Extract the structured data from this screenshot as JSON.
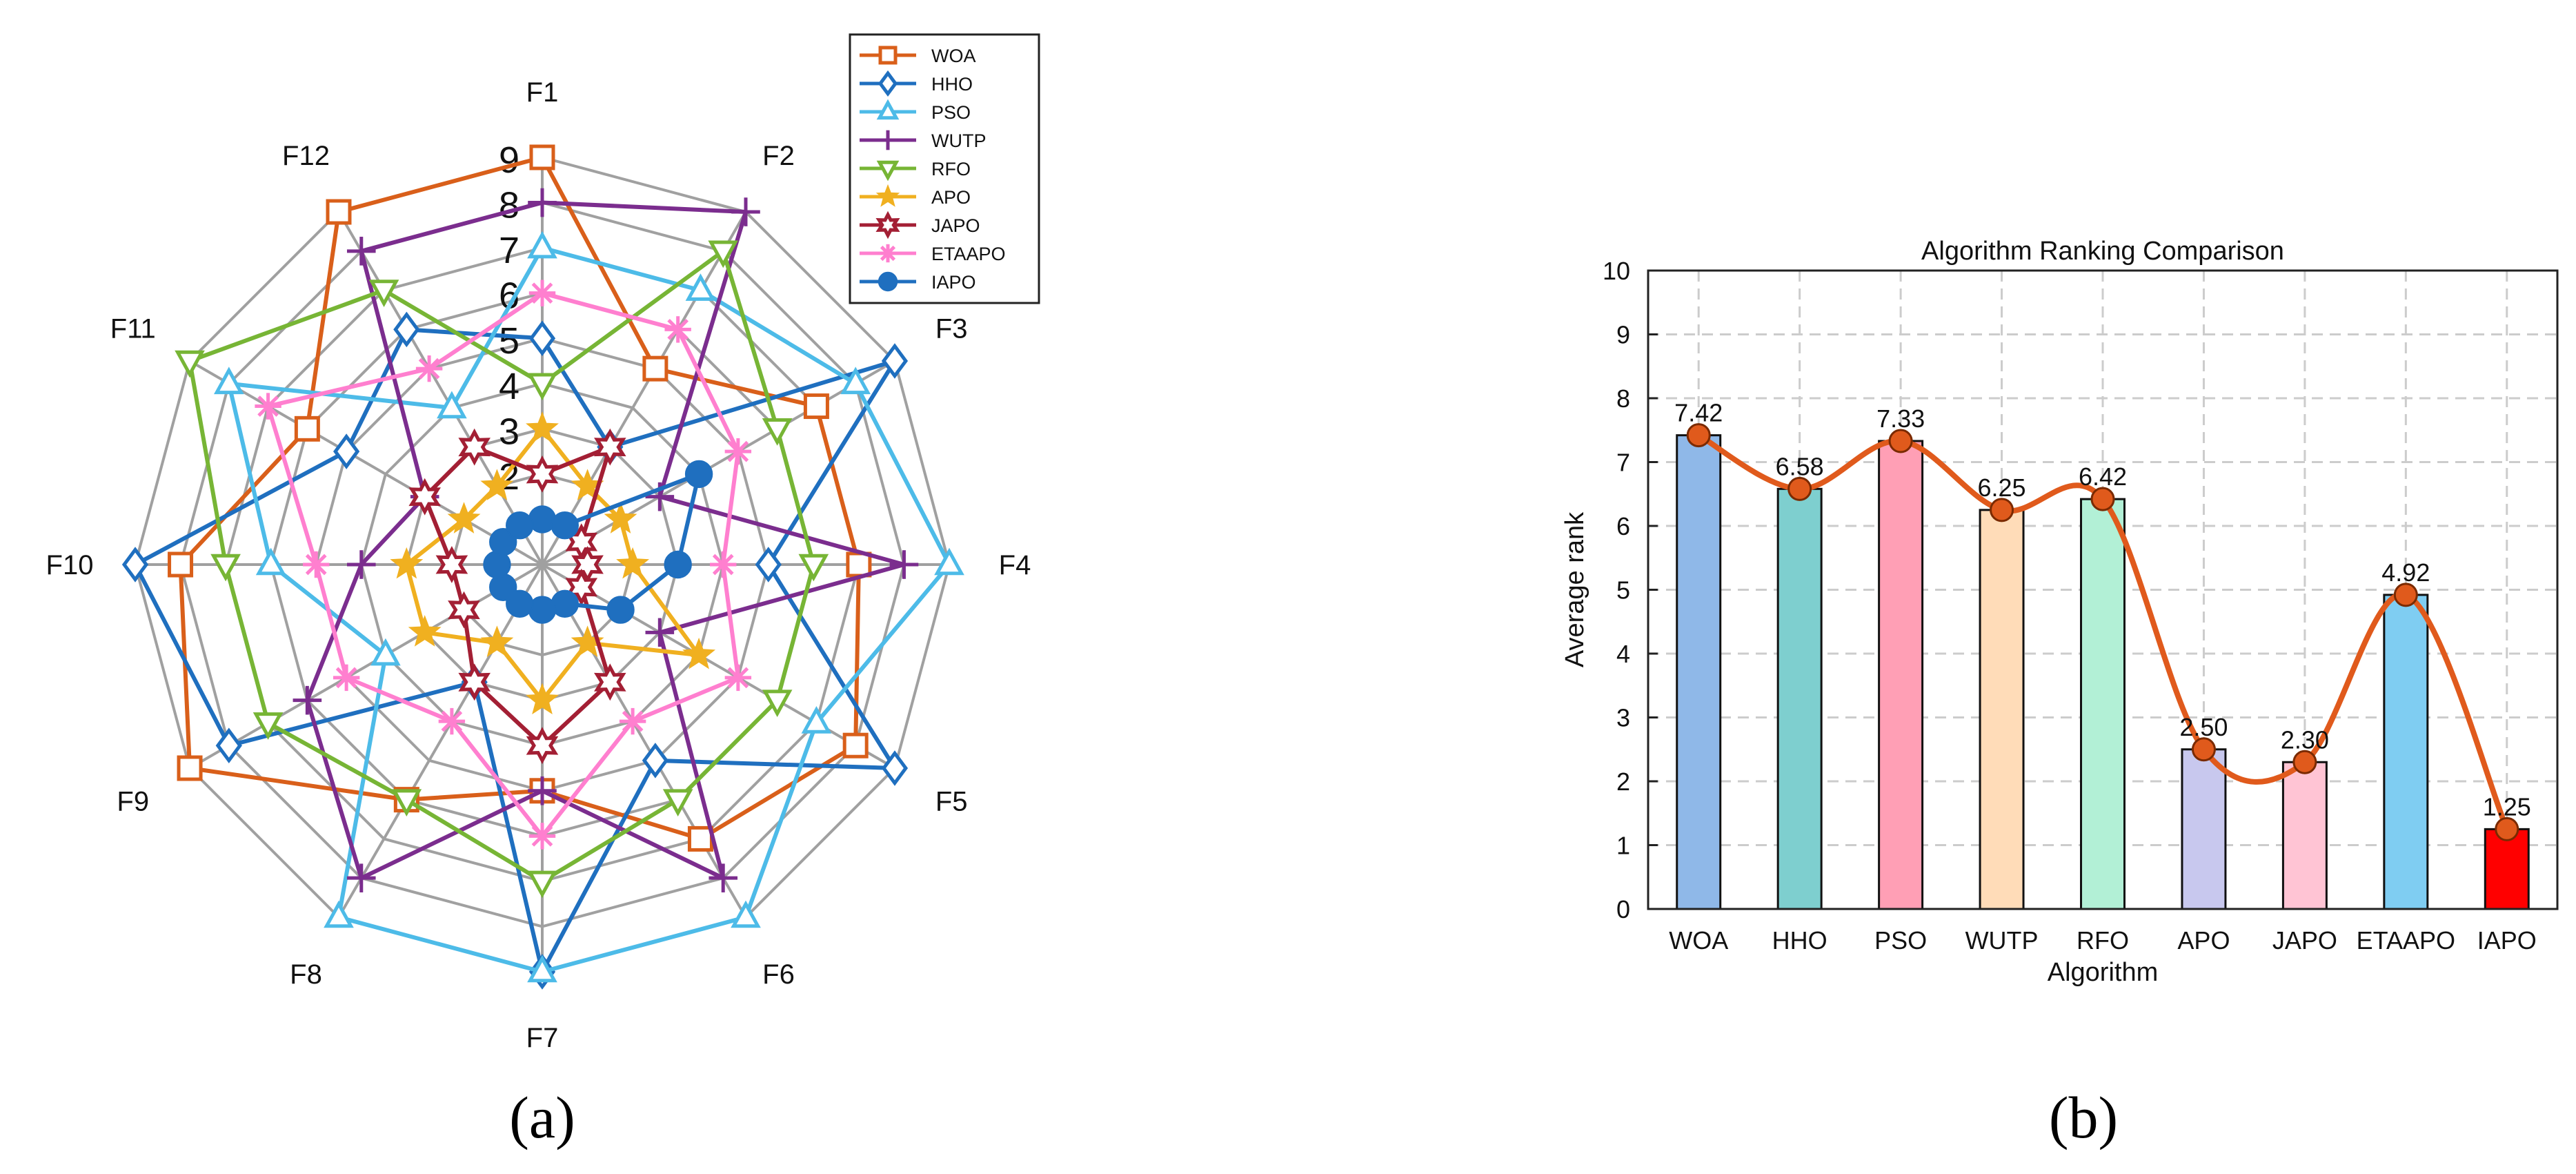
{
  "panel_labels": [
    "(a)",
    "(b)"
  ],
  "colors": {
    "grid_radar": "#a0a0a0",
    "grid_bar": "#cccccc",
    "axis": "#222222",
    "trend_line": "#e05a1c",
    "marker_fill": "#e05a1c",
    "marker_edge": "#7a2a00"
  },
  "chart_data": [
    {
      "type": "radar",
      "axes": [
        "F1",
        "F2",
        "F3",
        "F4",
        "F5",
        "F6",
        "F7",
        "F8",
        "F9",
        "F10",
        "F11",
        "F12"
      ],
      "rmax": 9,
      "radial_ticks": [
        2,
        3,
        4,
        5,
        6,
        7,
        8,
        9
      ],
      "radial_tick_labels": [
        "2",
        "3",
        "4",
        "5",
        "6",
        "7",
        "8",
        "9"
      ],
      "legend_position": "top-right",
      "series": [
        {
          "name": "WOA",
          "color": "#d95f1a",
          "marker": "square",
          "values": [
            9,
            5,
            7,
            7,
            8,
            7,
            5,
            6,
            9,
            8,
            6,
            9
          ]
        },
        {
          "name": "HHO",
          "color": "#1f6fbf",
          "marker": "diamond",
          "values": [
            5,
            3,
            9,
            5,
            9,
            5,
            9,
            3,
            8,
            9,
            5,
            6
          ]
        },
        {
          "name": "PSO",
          "color": "#4dbbe8",
          "marker": "triangle-up",
          "values": [
            7,
            7,
            8,
            9,
            7,
            9,
            9,
            9,
            4,
            6,
            8,
            4
          ]
        },
        {
          "name": "WUTP",
          "color": "#7b2d8e",
          "marker": "plus",
          "values": [
            8,
            9,
            3,
            8,
            3,
            8,
            5,
            8,
            6,
            4,
            3,
            8
          ]
        },
        {
          "name": "RFO",
          "color": "#77b535",
          "marker": "triangle-down",
          "values": [
            4,
            8,
            6,
            6,
            6,
            6,
            7,
            6,
            7,
            7,
            9,
            7
          ]
        },
        {
          "name": "APO",
          "color": "#f0b020",
          "marker": "star5",
          "values": [
            3,
            2,
            2,
            2,
            4,
            2,
            3,
            2,
            3,
            3,
            2,
            2
          ]
        },
        {
          "name": "JAPO",
          "color": "#a31f34",
          "marker": "hexagram",
          "values": [
            2,
            3,
            1,
            1,
            1,
            3,
            4,
            3,
            2,
            2,
            3,
            3
          ]
        },
        {
          "name": "ETAAPO",
          "color": "#ff7fcf",
          "marker": "asterisk",
          "values": [
            6,
            6,
            5,
            4,
            5,
            4,
            6,
            4,
            5,
            5,
            7,
            5
          ]
        },
        {
          "name": "IAPO",
          "color": "#1f6fbf",
          "marker": "circle",
          "values": [
            1,
            1,
            4,
            3,
            2,
            1,
            1,
            1,
            1,
            1,
            1,
            1
          ]
        }
      ]
    },
    {
      "type": "bar",
      "title": "Algorithm Ranking Comparison",
      "xlabel": "Algorithm",
      "ylabel": "Average rank",
      "ylim": [
        0,
        10
      ],
      "yticks": [
        0,
        1,
        2,
        3,
        4,
        5,
        6,
        7,
        8,
        9,
        10
      ],
      "categories": [
        "WOA",
        "HHO",
        "PSO",
        "WUTP",
        "RFO",
        "APO",
        "JAPO",
        "ETAAPO",
        "IAPO"
      ],
      "values": [
        7.42,
        6.58,
        7.33,
        6.25,
        6.42,
        2.5,
        2.3,
        4.92,
        1.25
      ],
      "value_labels": [
        "7.42",
        "6.58",
        "7.33",
        "6.25",
        "6.42",
        "2.50",
        "2.30",
        "4.92",
        "1.25"
      ],
      "bar_colors": [
        "#8fb8e8",
        "#7ecfcf",
        "#ff9fb5",
        "#ffdcb8",
        "#b2f0d6",
        "#c8c8ee",
        "#ffc4d4",
        "#7fcdf2",
        "#ff0000"
      ],
      "grid": true,
      "trend_line": "smooth spline through bar tops"
    }
  ]
}
